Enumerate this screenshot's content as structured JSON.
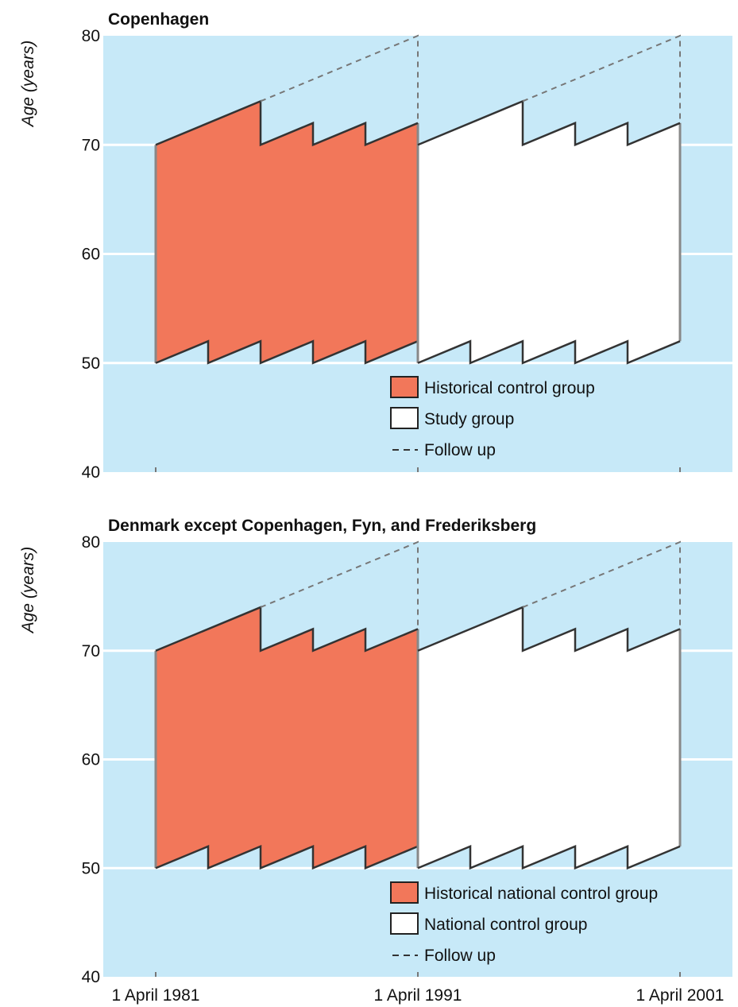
{
  "colors": {
    "background": "#c7e9f8",
    "gridline": "#ffffff",
    "historical_fill": "#f2775a",
    "study_fill": "#ffffff",
    "outline": "#333333",
    "dashed": "#777777"
  },
  "chart_data": [
    {
      "type": "area",
      "title": "Copenhagen",
      "xlabel": "",
      "ylabel": "Age (years)",
      "ylim": [
        40,
        80
      ],
      "yticks": [
        40,
        50,
        60,
        70,
        80
      ],
      "xlim": [
        1981,
        2002
      ],
      "xticks": [
        {
          "value": 1981,
          "label": "1 April 1981"
        },
        {
          "value": 1991,
          "label": "1 April 1991"
        },
        {
          "value": 2001,
          "label": "1 April 2001"
        }
      ],
      "show_xtick_labels": false,
      "grid": true,
      "legend_position": "bottom-right",
      "legend": [
        {
          "label": "Historical control group",
          "kind": "historical"
        },
        {
          "label": "Study group",
          "kind": "study"
        },
        {
          "label": "Follow up",
          "kind": "dashed"
        }
      ],
      "series": [
        {
          "name": "Historical control group",
          "kind": "historical",
          "upper": [
            [
              1981,
              70
            ],
            [
              1985,
              74
            ],
            [
              1985,
              70
            ],
            [
              1987,
              72
            ],
            [
              1987,
              70
            ],
            [
              1989,
              72
            ],
            [
              1989,
              70
            ],
            [
              1991,
              72
            ]
          ],
          "lower": [
            [
              1981,
              50
            ],
            [
              1983,
              52
            ],
            [
              1983,
              50
            ],
            [
              1985,
              52
            ],
            [
              1985,
              50
            ],
            [
              1987,
              52
            ],
            [
              1987,
              50
            ],
            [
              1989,
              52
            ],
            [
              1989,
              50
            ],
            [
              1991,
              52
            ]
          ]
        },
        {
          "name": "Study group",
          "kind": "study",
          "upper": [
            [
              1991,
              70
            ],
            [
              1995,
              74
            ],
            [
              1995,
              70
            ],
            [
              1997,
              72
            ],
            [
              1997,
              70
            ],
            [
              1999,
              72
            ],
            [
              1999,
              70
            ],
            [
              2001,
              72
            ]
          ],
          "lower": [
            [
              1991,
              50
            ],
            [
              1993,
              52
            ],
            [
              1993,
              50
            ],
            [
              1995,
              52
            ],
            [
              1995,
              50
            ],
            [
              1997,
              52
            ],
            [
              1997,
              50
            ],
            [
              1999,
              52
            ],
            [
              1999,
              50
            ],
            [
              2001,
              52
            ]
          ]
        },
        {
          "name": "Follow up",
          "kind": "dashed",
          "paths": [
            [
              [
                1985,
                74
              ],
              [
                1991,
                80
              ],
              [
                1991,
                72
              ]
            ],
            [
              [
                1995,
                74
              ],
              [
                2001,
                80
              ],
              [
                2001,
                72
              ]
            ]
          ]
        }
      ]
    },
    {
      "type": "area",
      "title": "Denmark except Copenhagen, Fyn, and Frederiksberg",
      "xlabel": "",
      "ylabel": "Age (years)",
      "ylim": [
        40,
        80
      ],
      "yticks": [
        40,
        50,
        60,
        70,
        80
      ],
      "xlim": [
        1981,
        2002
      ],
      "xticks": [
        {
          "value": 1981,
          "label": "1 April 1981"
        },
        {
          "value": 1991,
          "label": "1 April 1991"
        },
        {
          "value": 2001,
          "label": "1 April 2001"
        }
      ],
      "show_xtick_labels": true,
      "grid": true,
      "legend_position": "bottom-right",
      "legend": [
        {
          "label": "Historical national control group",
          "kind": "historical"
        },
        {
          "label": "National control group",
          "kind": "study"
        },
        {
          "label": "Follow up",
          "kind": "dashed"
        }
      ],
      "series": [
        {
          "name": "Historical national control group",
          "kind": "historical",
          "upper": [
            [
              1981,
              70
            ],
            [
              1985,
              74
            ],
            [
              1985,
              70
            ],
            [
              1987,
              72
            ],
            [
              1987,
              70
            ],
            [
              1989,
              72
            ],
            [
              1989,
              70
            ],
            [
              1991,
              72
            ]
          ],
          "lower": [
            [
              1981,
              50
            ],
            [
              1983,
              52
            ],
            [
              1983,
              50
            ],
            [
              1985,
              52
            ],
            [
              1985,
              50
            ],
            [
              1987,
              52
            ],
            [
              1987,
              50
            ],
            [
              1989,
              52
            ],
            [
              1989,
              50
            ],
            [
              1991,
              52
            ]
          ]
        },
        {
          "name": "National control group",
          "kind": "study",
          "upper": [
            [
              1991,
              70
            ],
            [
              1995,
              74
            ],
            [
              1995,
              70
            ],
            [
              1997,
              72
            ],
            [
              1997,
              70
            ],
            [
              1999,
              72
            ],
            [
              1999,
              70
            ],
            [
              2001,
              72
            ]
          ],
          "lower": [
            [
              1991,
              50
            ],
            [
              1993,
              52
            ],
            [
              1993,
              50
            ],
            [
              1995,
              52
            ],
            [
              1995,
              50
            ],
            [
              1997,
              52
            ],
            [
              1997,
              50
            ],
            [
              1999,
              52
            ],
            [
              1999,
              50
            ],
            [
              2001,
              52
            ]
          ]
        },
        {
          "name": "Follow up",
          "kind": "dashed",
          "paths": [
            [
              [
                1985,
                74
              ],
              [
                1991,
                80
              ],
              [
                1991,
                72
              ]
            ],
            [
              [
                1995,
                74
              ],
              [
                2001,
                80
              ],
              [
                2001,
                72
              ]
            ]
          ]
        }
      ]
    }
  ]
}
